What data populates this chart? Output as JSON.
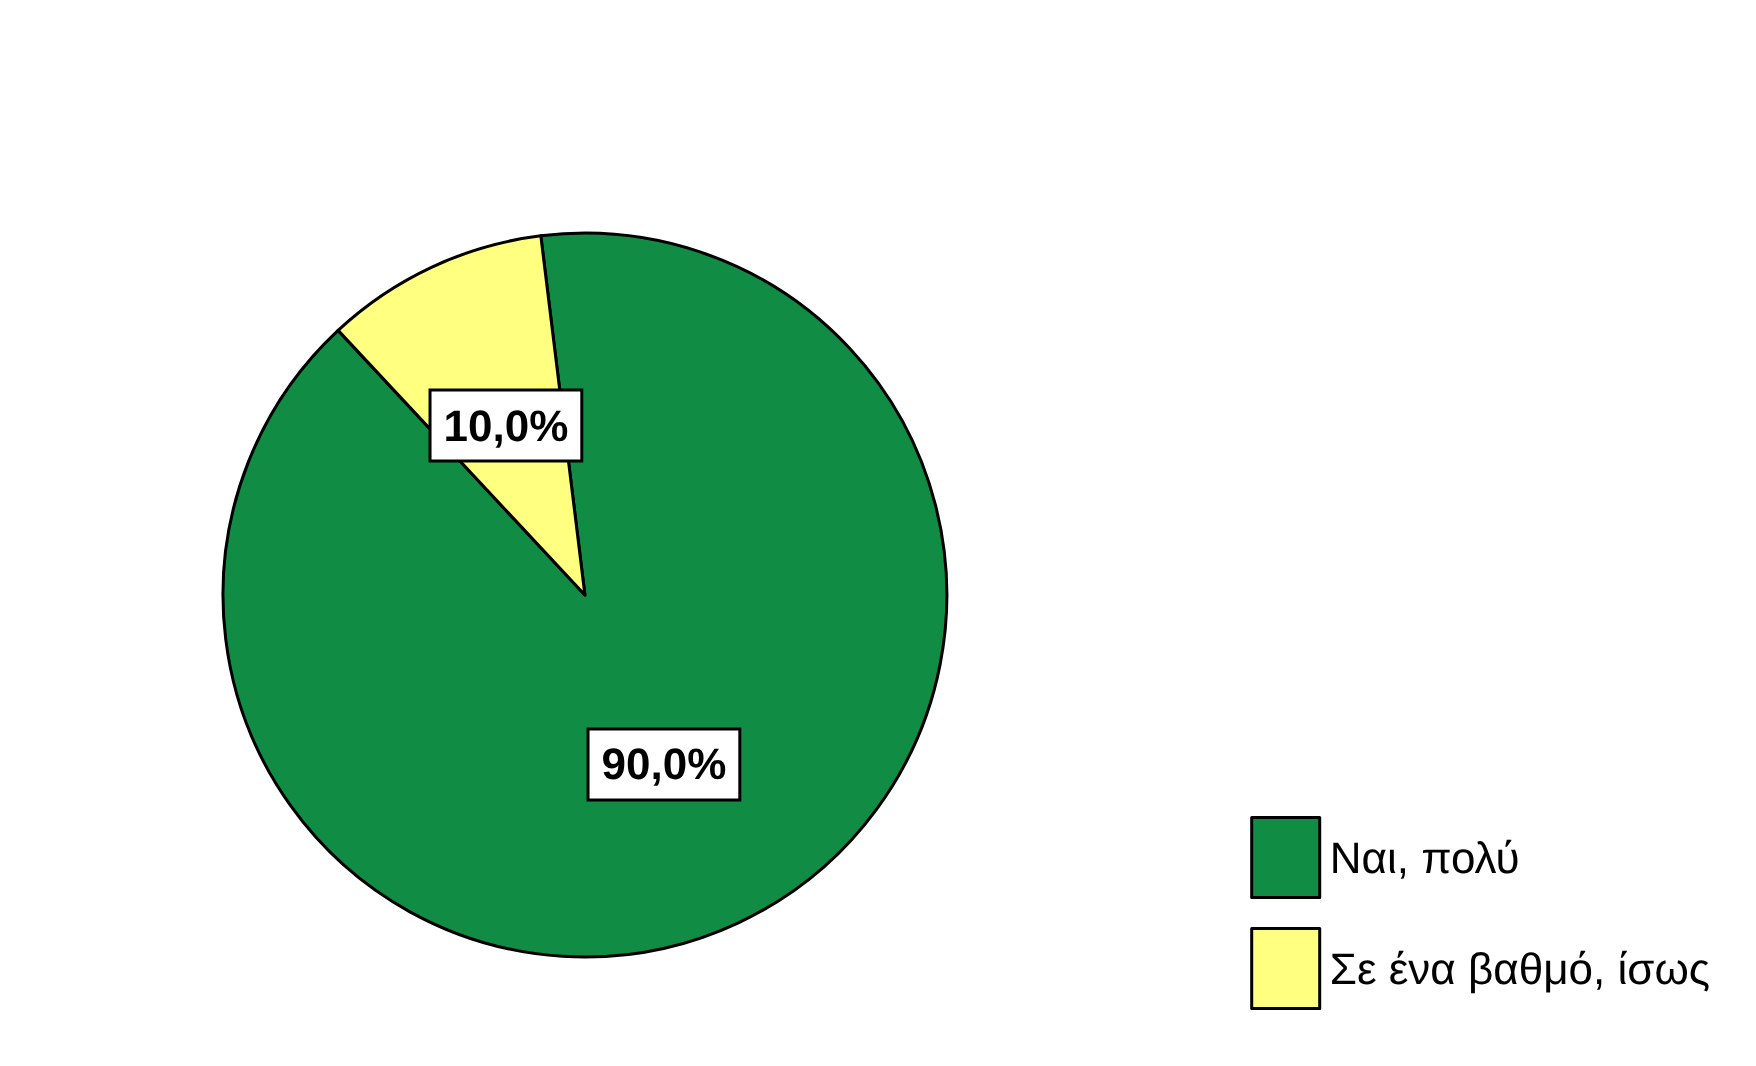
{
  "chart_data": {
    "type": "pie",
    "categories": [
      "Ναι, πολύ",
      "Σε ένα βαθμό, ίσως"
    ],
    "values": [
      90,
      10
    ],
    "colors": [
      "#118c44",
      "#ffff80"
    ],
    "value_labels": [
      "90,0%",
      "10,0%"
    ],
    "legend": "bottom right"
  }
}
